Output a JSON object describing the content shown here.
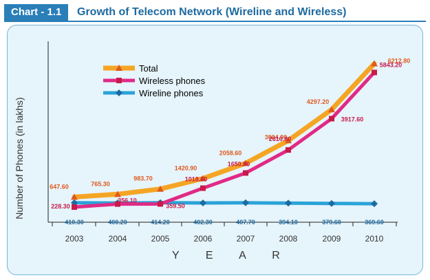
{
  "header": {
    "chart_label": "Chart - 1.1",
    "title": "Growth of Telecom Network (Wireline and Wireless)"
  },
  "colors": {
    "total": "#f5a524",
    "total_marker": "#e05a1e",
    "wireless": "#e02a86",
    "wireless_marker": "#c81a4a",
    "wireline": "#2aa3d8",
    "wireline_marker": "#1d6aa0",
    "accent": "#2a7fb8"
  },
  "chart_data": {
    "type": "line",
    "title": "Growth of Telecom Network (Wireline and Wireless)",
    "xlabel": "Y E A R",
    "ylabel": "Number of Phones (in lakhs)",
    "categories": [
      "2003",
      "2004",
      "2005",
      "2006",
      "2007",
      "2008",
      "2009",
      "2010"
    ],
    "ylim": [
      0,
      6800
    ],
    "grid": false,
    "legend_placement": "top-left",
    "series": [
      {
        "name": "Total",
        "key": "total",
        "values": [
          647.6,
          765.3,
          983.7,
          1420.9,
          2058.6,
          3004.9,
          4297.2,
          6212.8
        ],
        "labels": [
          "647.60",
          "765.30",
          "983.70",
          "1420.90",
          "2058.60",
          "3004.90",
          "4297.20",
          "6212.80"
        ]
      },
      {
        "name": "Wireless phones",
        "key": "wireless",
        "values": [
          228.3,
          356.1,
          359.5,
          1018.6,
          1650.9,
          2610.8,
          3917.6,
          5843.2
        ],
        "labels": [
          "228.30",
          "356.10",
          "359.50",
          "1018.60",
          "1650.90",
          "2610.80",
          "3917.60",
          "5843.20"
        ]
      },
      {
        "name": "Wireline phones",
        "key": "wireline",
        "values": [
          410.3,
          400.2,
          414.2,
          402.3,
          407.7,
          394.1,
          379.6,
          369.6
        ],
        "labels": [
          "410.30",
          "400.20",
          "414.20",
          "402.30",
          "407.70",
          "394.10",
          "379.60",
          "369.60"
        ]
      }
    ]
  }
}
